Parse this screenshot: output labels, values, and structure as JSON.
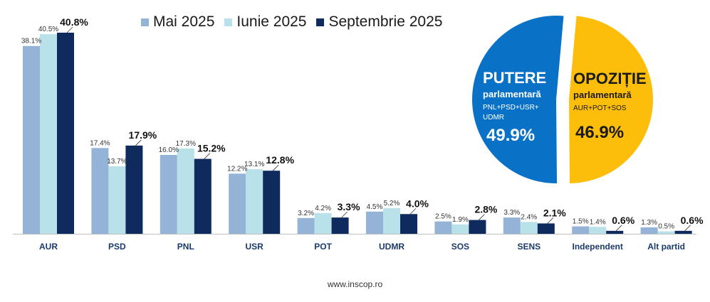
{
  "chart_data": {
    "type": "bar",
    "categories": [
      "AUR",
      "PSD",
      "PNL",
      "USR",
      "POT",
      "UDMR",
      "SOS",
      "SENS",
      "Independent",
      "Alt partid"
    ],
    "series": [
      {
        "name": "Mai 2025",
        "color": "#94b3d7",
        "values": [
          38.1,
          17.4,
          16.0,
          12.2,
          3.2,
          4.5,
          2.5,
          3.3,
          1.5,
          1.3
        ]
      },
      {
        "name": "Iunie 2025",
        "color": "#b9e1ea",
        "values": [
          40.5,
          13.7,
          17.3,
          13.1,
          4.2,
          5.2,
          1.9,
          2.4,
          1.4,
          0.5
        ]
      },
      {
        "name": "Septembrie 2025",
        "color": "#0f2a5c",
        "values": [
          40.8,
          17.9,
          15.2,
          12.8,
          3.3,
          4.0,
          2.8,
          2.1,
          0.6,
          0.6
        ]
      }
    ],
    "value_labels": [
      [
        "38.1%",
        "17.4%",
        "16.0%",
        "12.2%",
        "3.2%",
        "4.5%",
        "2.5%",
        "3.3%",
        "1.5%",
        "1.3%"
      ],
      [
        "40.5%",
        "13.7%",
        "17.3%",
        "13.1%",
        "4.2%",
        "5.2%",
        "1.9%",
        "2.4%",
        "1.4%",
        "0.5%"
      ],
      [
        "40.8%",
        "17.9%",
        "15.2%",
        "12.8%",
        "3.3%",
        "4.0%",
        "2.8%",
        "2.1%",
        "0.6%",
        "0.6%"
      ]
    ],
    "ylim": [
      0,
      45
    ],
    "legend_position": "top",
    "grid": false
  },
  "pie": {
    "type": "pie",
    "slices": [
      {
        "title": "PUTERE",
        "subtitle": "parlamentară",
        "members": "PNL+PSD+USR+\nUDMR",
        "value_label": "49.9%",
        "value": 49.9,
        "color": "#0a72c6"
      },
      {
        "title": "OPOZIȚIE",
        "subtitle": "parlamentară",
        "members": "AUR+POT+SOS",
        "value_label": "46.9%",
        "value": 46.9,
        "color": "#fcbe0a"
      }
    ]
  },
  "colors": {
    "text_dark": "#1a1a1a",
    "axis": "#bfbfbf",
    "label_light": "#333333"
  },
  "footer": {
    "source": "www.inscop.ro"
  }
}
